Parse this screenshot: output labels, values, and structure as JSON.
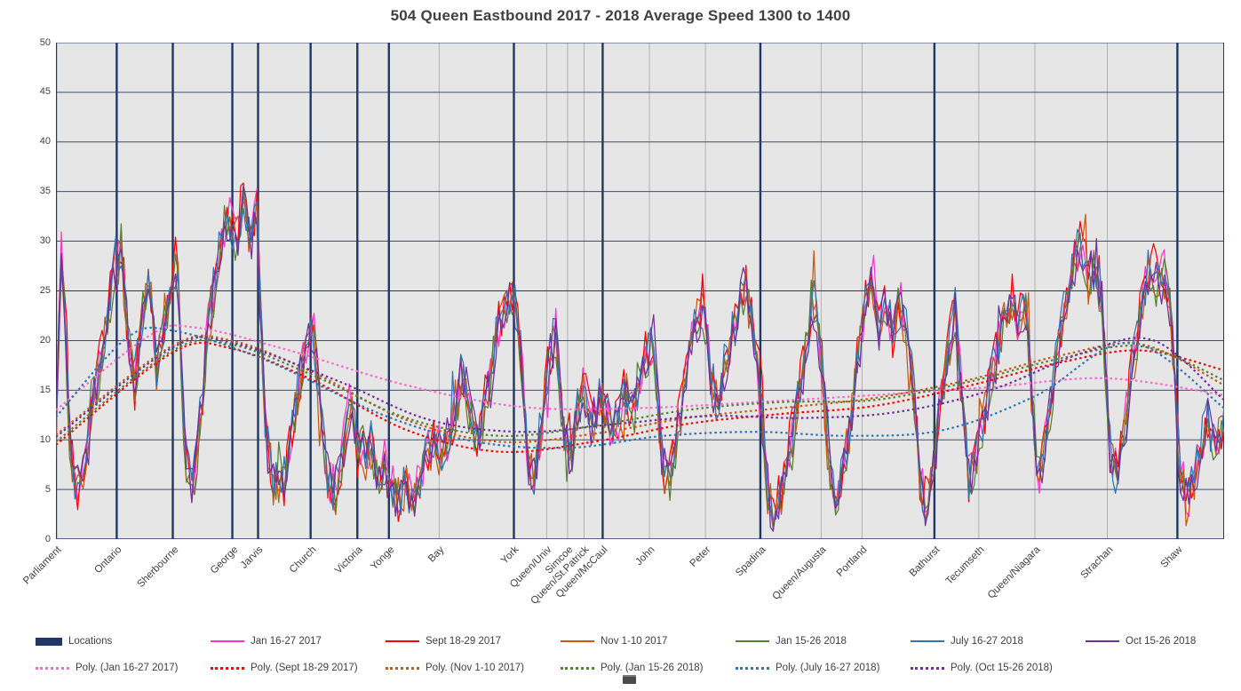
{
  "chart_data": {
    "type": "line",
    "title": "504 Queen Eastbound 2017 - 2018 Average Speed 1300 to 1400",
    "xlabel": "",
    "ylabel": "",
    "ylim": [
      0,
      50
    ],
    "yticks": [
      0,
      5,
      10,
      15,
      20,
      25,
      30,
      35,
      40,
      45,
      50
    ],
    "grid": "on",
    "legend_position": "bottom",
    "plot_bg_color": "#E7E6E6",
    "grid_color": "#1F3864",
    "minor_grid_color": "#A6A6A6",
    "categories": [
      "Parliament",
      "Ontario",
      "Sherbourne",
      "George",
      "Jarvis",
      "Church",
      "Victoria",
      "Yonge",
      "Bay",
      "York",
      "Queen/Univ",
      "Simcoe",
      "Queen/St.Patrick",
      "Queen/McCaul",
      "John",
      "Peter",
      "Spadina",
      "Queen/Augusta",
      "Portland",
      "Bathurst",
      "Tecumseth",
      "Queen/Niagara",
      "Strachan",
      "Shaw"
    ],
    "category_positions": [
      0.0,
      0.052,
      0.1,
      0.151,
      0.173,
      0.218,
      0.258,
      0.285,
      0.328,
      0.392,
      0.42,
      0.438,
      0.452,
      0.468,
      0.508,
      0.556,
      0.603,
      0.655,
      0.69,
      0.752,
      0.79,
      0.838,
      0.9,
      0.96
    ],
    "locations_series": {
      "name": "Locations",
      "color": "#1F3864",
      "line_indices": [
        0,
        1,
        2,
        3,
        4,
        5,
        6,
        7,
        9,
        13,
        16,
        19,
        23
      ]
    },
    "series": [
      {
        "name": "Jan 16-27 2017",
        "color": "#FF33CC",
        "seed": 11,
        "noise_amp": 2.4,
        "scale": 1.0,
        "offset": 0.3
      },
      {
        "name": "Sept 18-29 2017",
        "color": "#FF0000",
        "seed": 23,
        "noise_amp": 2.6,
        "scale": 1.02,
        "offset": 0.0
      },
      {
        "name": "Nov 1-10 2017",
        "color": "#C55A11",
        "seed": 37,
        "noise_amp": 2.4,
        "scale": 1.0,
        "offset": -0.2
      },
      {
        "name": "Jan 15-26 2018",
        "color": "#548235",
        "seed": 47,
        "noise_amp": 2.3,
        "scale": 0.98,
        "offset": 0.0
      },
      {
        "name": "July 16-27 2018",
        "color": "#2E75B6",
        "seed": 59,
        "noise_amp": 2.5,
        "scale": 1.0,
        "offset": 0.2
      },
      {
        "name": "Oct 15-26 2018",
        "color": "#7030A0",
        "seed": 71,
        "noise_amp": 2.6,
        "scale": 1.0,
        "offset": -0.1
      }
    ],
    "base_profile": [
      [
        0.0,
        10
      ],
      [
        0.003,
        24
      ],
      [
        0.005,
        30
      ],
      [
        0.008,
        22
      ],
      [
        0.012,
        9
      ],
      [
        0.016,
        5.5
      ],
      [
        0.02,
        5
      ],
      [
        0.026,
        9
      ],
      [
        0.032,
        14
      ],
      [
        0.038,
        18
      ],
      [
        0.044,
        22
      ],
      [
        0.05,
        27
      ],
      [
        0.056,
        29
      ],
      [
        0.062,
        20
      ],
      [
        0.068,
        16
      ],
      [
        0.074,
        23
      ],
      [
        0.08,
        27
      ],
      [
        0.086,
        17
      ],
      [
        0.092,
        21
      ],
      [
        0.098,
        26
      ],
      [
        0.104,
        28
      ],
      [
        0.108,
        14
      ],
      [
        0.112,
        7
      ],
      [
        0.118,
        5.5
      ],
      [
        0.124,
        12
      ],
      [
        0.13,
        21
      ],
      [
        0.136,
        26
      ],
      [
        0.142,
        30
      ],
      [
        0.148,
        33
      ],
      [
        0.154,
        30
      ],
      [
        0.16,
        34
      ],
      [
        0.166,
        30
      ],
      [
        0.172,
        33
      ],
      [
        0.176,
        20
      ],
      [
        0.18,
        10
      ],
      [
        0.186,
        6
      ],
      [
        0.192,
        5
      ],
      [
        0.199,
        8
      ],
      [
        0.206,
        14
      ],
      [
        0.213,
        19
      ],
      [
        0.22,
        22
      ],
      [
        0.226,
        13
      ],
      [
        0.232,
        6.5
      ],
      [
        0.239,
        4.5
      ],
      [
        0.246,
        9
      ],
      [
        0.252,
        14
      ],
      [
        0.258,
        10
      ],
      [
        0.264,
        8
      ],
      [
        0.27,
        9.5
      ],
      [
        0.276,
        6.5
      ],
      [
        0.282,
        7.5
      ],
      [
        0.288,
        5
      ],
      [
        0.294,
        4
      ],
      [
        0.3,
        5.5
      ],
      [
        0.306,
        4
      ],
      [
        0.312,
        6
      ],
      [
        0.318,
        8.5
      ],
      [
        0.324,
        10
      ],
      [
        0.33,
        8.5
      ],
      [
        0.336,
        10
      ],
      [
        0.342,
        13
      ],
      [
        0.348,
        17
      ],
      [
        0.354,
        13
      ],
      [
        0.36,
        10
      ],
      [
        0.366,
        13
      ],
      [
        0.372,
        17
      ],
      [
        0.379,
        21
      ],
      [
        0.386,
        24
      ],
      [
        0.392,
        24
      ],
      [
        0.398,
        19
      ],
      [
        0.404,
        7
      ],
      [
        0.41,
        6
      ],
      [
        0.416,
        12
      ],
      [
        0.422,
        18
      ],
      [
        0.428,
        21
      ],
      [
        0.434,
        11
      ],
      [
        0.44,
        7.5
      ],
      [
        0.446,
        13
      ],
      [
        0.452,
        15
      ],
      [
        0.458,
        11.5
      ],
      [
        0.464,
        14
      ],
      [
        0.47,
        13
      ],
      [
        0.476,
        10
      ],
      [
        0.482,
        13
      ],
      [
        0.488,
        15
      ],
      [
        0.494,
        12
      ],
      [
        0.5,
        16
      ],
      [
        0.506,
        19
      ],
      [
        0.512,
        20
      ],
      [
        0.518,
        9
      ],
      [
        0.524,
        5
      ],
      [
        0.53,
        9
      ],
      [
        0.536,
        14
      ],
      [
        0.542,
        18
      ],
      [
        0.548,
        22
      ],
      [
        0.554,
        24
      ],
      [
        0.56,
        17
      ],
      [
        0.566,
        13.5
      ],
      [
        0.572,
        17
      ],
      [
        0.578,
        20
      ],
      [
        0.584,
        23
      ],
      [
        0.59,
        26
      ],
      [
        0.596,
        21
      ],
      [
        0.602,
        17
      ],
      [
        0.608,
        6
      ],
      [
        0.614,
        2.5
      ],
      [
        0.62,
        4.5
      ],
      [
        0.626,
        8
      ],
      [
        0.632,
        12
      ],
      [
        0.638,
        16
      ],
      [
        0.644,
        21
      ],
      [
        0.65,
        24
      ],
      [
        0.656,
        17
      ],
      [
        0.662,
        7
      ],
      [
        0.668,
        3
      ],
      [
        0.674,
        6.5
      ],
      [
        0.68,
        12
      ],
      [
        0.686,
        18
      ],
      [
        0.692,
        23
      ],
      [
        0.698,
        26
      ],
      [
        0.704,
        21
      ],
      [
        0.71,
        25
      ],
      [
        0.716,
        20
      ],
      [
        0.722,
        24
      ],
      [
        0.728,
        21
      ],
      [
        0.734,
        16
      ],
      [
        0.74,
        5.5
      ],
      [
        0.746,
        3
      ],
      [
        0.752,
        8
      ],
      [
        0.758,
        14
      ],
      [
        0.764,
        19
      ],
      [
        0.77,
        23
      ],
      [
        0.776,
        15
      ],
      [
        0.782,
        5
      ],
      [
        0.788,
        8.5
      ],
      [
        0.794,
        12
      ],
      [
        0.8,
        16
      ],
      [
        0.806,
        19
      ],
      [
        0.812,
        22
      ],
      [
        0.818,
        24
      ],
      [
        0.824,
        21
      ],
      [
        0.83,
        24
      ],
      [
        0.836,
        13
      ],
      [
        0.842,
        6
      ],
      [
        0.848,
        10
      ],
      [
        0.854,
        16
      ],
      [
        0.86,
        21
      ],
      [
        0.866,
        25
      ],
      [
        0.872,
        28
      ],
      [
        0.878,
        30
      ],
      [
        0.884,
        26
      ],
      [
        0.89,
        28
      ],
      [
        0.896,
        23
      ],
      [
        0.902,
        9
      ],
      [
        0.908,
        6
      ],
      [
        0.914,
        10
      ],
      [
        0.92,
        16
      ],
      [
        0.926,
        21
      ],
      [
        0.932,
        25
      ],
      [
        0.938,
        28
      ],
      [
        0.944,
        25
      ],
      [
        0.95,
        27
      ],
      [
        0.956,
        20
      ],
      [
        0.962,
        7
      ],
      [
        0.968,
        3.5
      ],
      [
        0.974,
        6
      ],
      [
        0.98,
        9.5
      ],
      [
        0.986,
        12
      ],
      [
        0.992,
        9.5
      ],
      [
        1.0,
        12
      ]
    ],
    "poly_series": [
      {
        "name": "Poly. (Jan 16-27 2017)",
        "color": "#FF66CC",
        "points": [
          [
            0,
            13
          ],
          [
            0.08,
            20.5
          ],
          [
            0.12,
            21.3
          ],
          [
            0.2,
            19
          ],
          [
            0.3,
            15.5
          ],
          [
            0.4,
            13.3
          ],
          [
            0.5,
            13.2
          ],
          [
            0.6,
            13.8
          ],
          [
            0.7,
            14.5
          ],
          [
            0.8,
            15.3
          ],
          [
            0.9,
            16.2
          ],
          [
            1.0,
            14.5
          ]
        ]
      },
      {
        "name": "Poly. (Sept 18-29 2017)",
        "color": "#FF0000",
        "points": [
          [
            0,
            9.5
          ],
          [
            0.1,
            18.8
          ],
          [
            0.15,
            19.2
          ],
          [
            0.22,
            16
          ],
          [
            0.3,
            11
          ],
          [
            0.38,
            8.8
          ],
          [
            0.46,
            9.8
          ],
          [
            0.54,
            11.6
          ],
          [
            0.62,
            12.6
          ],
          [
            0.7,
            13.4
          ],
          [
            0.78,
            15.4
          ],
          [
            0.86,
            17.8
          ],
          [
            0.93,
            19
          ],
          [
            1.0,
            17
          ]
        ]
      },
      {
        "name": "Poly. (Nov 1-10 2017)",
        "color": "#C55A11",
        "points": [
          [
            0,
            10.5
          ],
          [
            0.1,
            19.5
          ],
          [
            0.15,
            20
          ],
          [
            0.22,
            16.8
          ],
          [
            0.3,
            12
          ],
          [
            0.38,
            9.8
          ],
          [
            0.46,
            10.6
          ],
          [
            0.54,
            12.2
          ],
          [
            0.62,
            13.2
          ],
          [
            0.7,
            14.2
          ],
          [
            0.78,
            16
          ],
          [
            0.86,
            18.5
          ],
          [
            0.93,
            19.6
          ],
          [
            1.0,
            15.5
          ]
        ]
      },
      {
        "name": "Poly. (Jan 15-26 2018)",
        "color": "#548235",
        "points": [
          [
            0,
            9.8
          ],
          [
            0.1,
            19
          ],
          [
            0.15,
            19.6
          ],
          [
            0.22,
            16.5
          ],
          [
            0.3,
            12.2
          ],
          [
            0.38,
            10.4
          ],
          [
            0.46,
            11.4
          ],
          [
            0.54,
            13
          ],
          [
            0.62,
            13.8
          ],
          [
            0.7,
            14
          ],
          [
            0.78,
            15.8
          ],
          [
            0.86,
            18.2
          ],
          [
            0.93,
            19.4
          ],
          [
            1.0,
            16
          ]
        ]
      },
      {
        "name": "Poly. (July 16-27 2018)",
        "color": "#2E75B6",
        "points": [
          [
            0,
            12.3
          ],
          [
            0.06,
            20.2
          ],
          [
            0.1,
            21
          ],
          [
            0.18,
            18
          ],
          [
            0.28,
            12.5
          ],
          [
            0.36,
            9.8
          ],
          [
            0.44,
            9.2
          ],
          [
            0.52,
            10.4
          ],
          [
            0.6,
            10.8
          ],
          [
            0.68,
            10.4
          ],
          [
            0.76,
            11
          ],
          [
            0.84,
            14.5
          ],
          [
            0.92,
            19.8
          ],
          [
            1.0,
            13.2
          ]
        ]
      },
      {
        "name": "Poly. (Oct 15-26 2018)",
        "color": "#7030A0",
        "points": [
          [
            0,
            10.3
          ],
          [
            0.1,
            19.3
          ],
          [
            0.15,
            19.8
          ],
          [
            0.24,
            16
          ],
          [
            0.32,
            12
          ],
          [
            0.4,
            10.8
          ],
          [
            0.48,
            11.6
          ],
          [
            0.56,
            12.4
          ],
          [
            0.64,
            12.2
          ],
          [
            0.72,
            12.8
          ],
          [
            0.8,
            15
          ],
          [
            0.88,
            18.8
          ],
          [
            0.94,
            20
          ],
          [
            1.0,
            14
          ]
        ]
      }
    ],
    "legend": {
      "row1": [
        "Locations",
        "Jan 16-27 2017",
        "Sept 18-29 2017",
        "Nov 1-10 2017",
        "Jan 15-26 2018",
        "July 16-27 2018",
        "Oct 15-26 2018"
      ],
      "row2": [
        "Poly. (Jan 16-27 2017)",
        "Poly. (Sept 18-29 2017)",
        "Poly. (Nov 1-10 2017)",
        "Poly. (Jan 15-26 2018)",
        "Poly. (July 16-27 2018)",
        "Poly. (Oct 15-26 2018)"
      ]
    }
  }
}
